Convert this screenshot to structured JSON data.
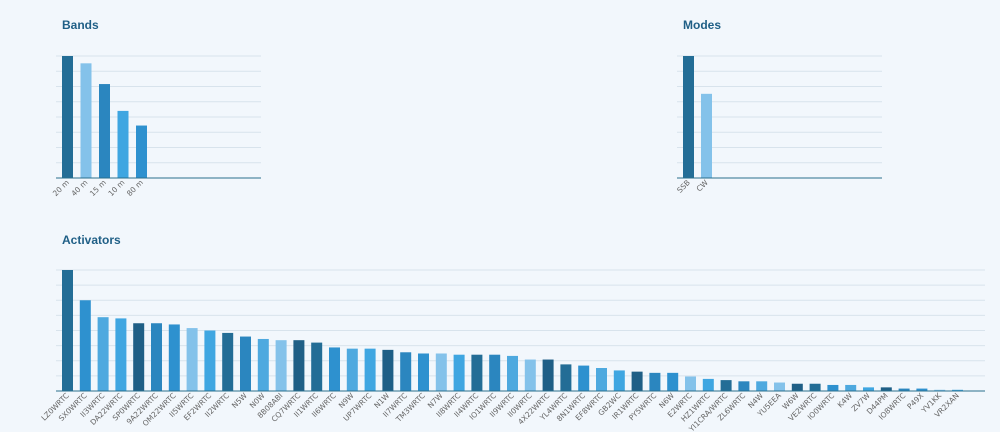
{
  "palette": [
    "#236d96",
    "#84c2ea",
    "#2b86bf",
    "#3fa6e1",
    "#2e91cf",
    "#1f5f86",
    "#4ea9df"
  ],
  "chart_data": [
    {
      "id": "bands",
      "type": "bar",
      "title": "Bands",
      "categories": [
        "20 m",
        "40 m",
        "15 m",
        "10 m",
        "80 m"
      ],
      "values": [
        100,
        94,
        77,
        55,
        43
      ],
      "ylim": [
        0,
        100
      ],
      "grid": true,
      "colors": [
        "#236d96",
        "#84c2ea",
        "#2b86bf",
        "#3fa6e1",
        "#2e91cf"
      ]
    },
    {
      "id": "modes",
      "type": "bar",
      "title": "Modes",
      "categories": [
        "SSB",
        "CW"
      ],
      "values": [
        100,
        69
      ],
      "ylim": [
        0,
        100
      ],
      "grid": true,
      "colors": [
        "#236d96",
        "#84c2ea"
      ]
    },
    {
      "id": "activators",
      "type": "bar",
      "title": "Activators",
      "categories": [
        "LZ0WRTC",
        "SX0WRTC",
        "II3WRTC",
        "DA22WRTC",
        "SP0WRTC",
        "9A22WRTC",
        "OM22WRTC",
        "II5WRTC",
        "EF2WRTC",
        "II2WRTC",
        "N5W",
        "N0W",
        "8B08ABI",
        "CQ7WRTC",
        "II1WRTC",
        "II6WRTC",
        "N9W",
        "UP7WRTC",
        "N1W",
        "II7WRTC",
        "TM3WRTC",
        "N7W",
        "II8WRTC",
        "II4WRTC",
        "IO1WRTC",
        "II9WRTC",
        "II0WRTC",
        "4X22WRTC",
        "YL4WRTC",
        "8N1WRTC",
        "EF8WRTC",
        "GB2WC",
        "IR1WRTC",
        "PY5WRTC",
        "N6W",
        "E2WRTC",
        "HZ1WRTC",
        "YI1CRA/WRTC",
        "ZL6WRTC",
        "N4W",
        "YU5EEA",
        "W6W",
        "VE2WRTC",
        "IO0WRTC",
        "K4W",
        "ZV7W",
        "D44PM",
        "IO8WRTC",
        "P49X",
        "YV1KK",
        "VR2XAN"
      ],
      "values": [
        100,
        75,
        61,
        60,
        56,
        56,
        55,
        52,
        50,
        48,
        45,
        43,
        42,
        42,
        40,
        36,
        35,
        35,
        34,
        32,
        31,
        31,
        30,
        30,
        30,
        29,
        26,
        26,
        22,
        21,
        19,
        17,
        16,
        15,
        15,
        12,
        10,
        9,
        8,
        8,
        7,
        6,
        6,
        5,
        5,
        3,
        3,
        2,
        2,
        1,
        1
      ],
      "ylim": [
        0,
        100
      ],
      "grid": true
    }
  ]
}
